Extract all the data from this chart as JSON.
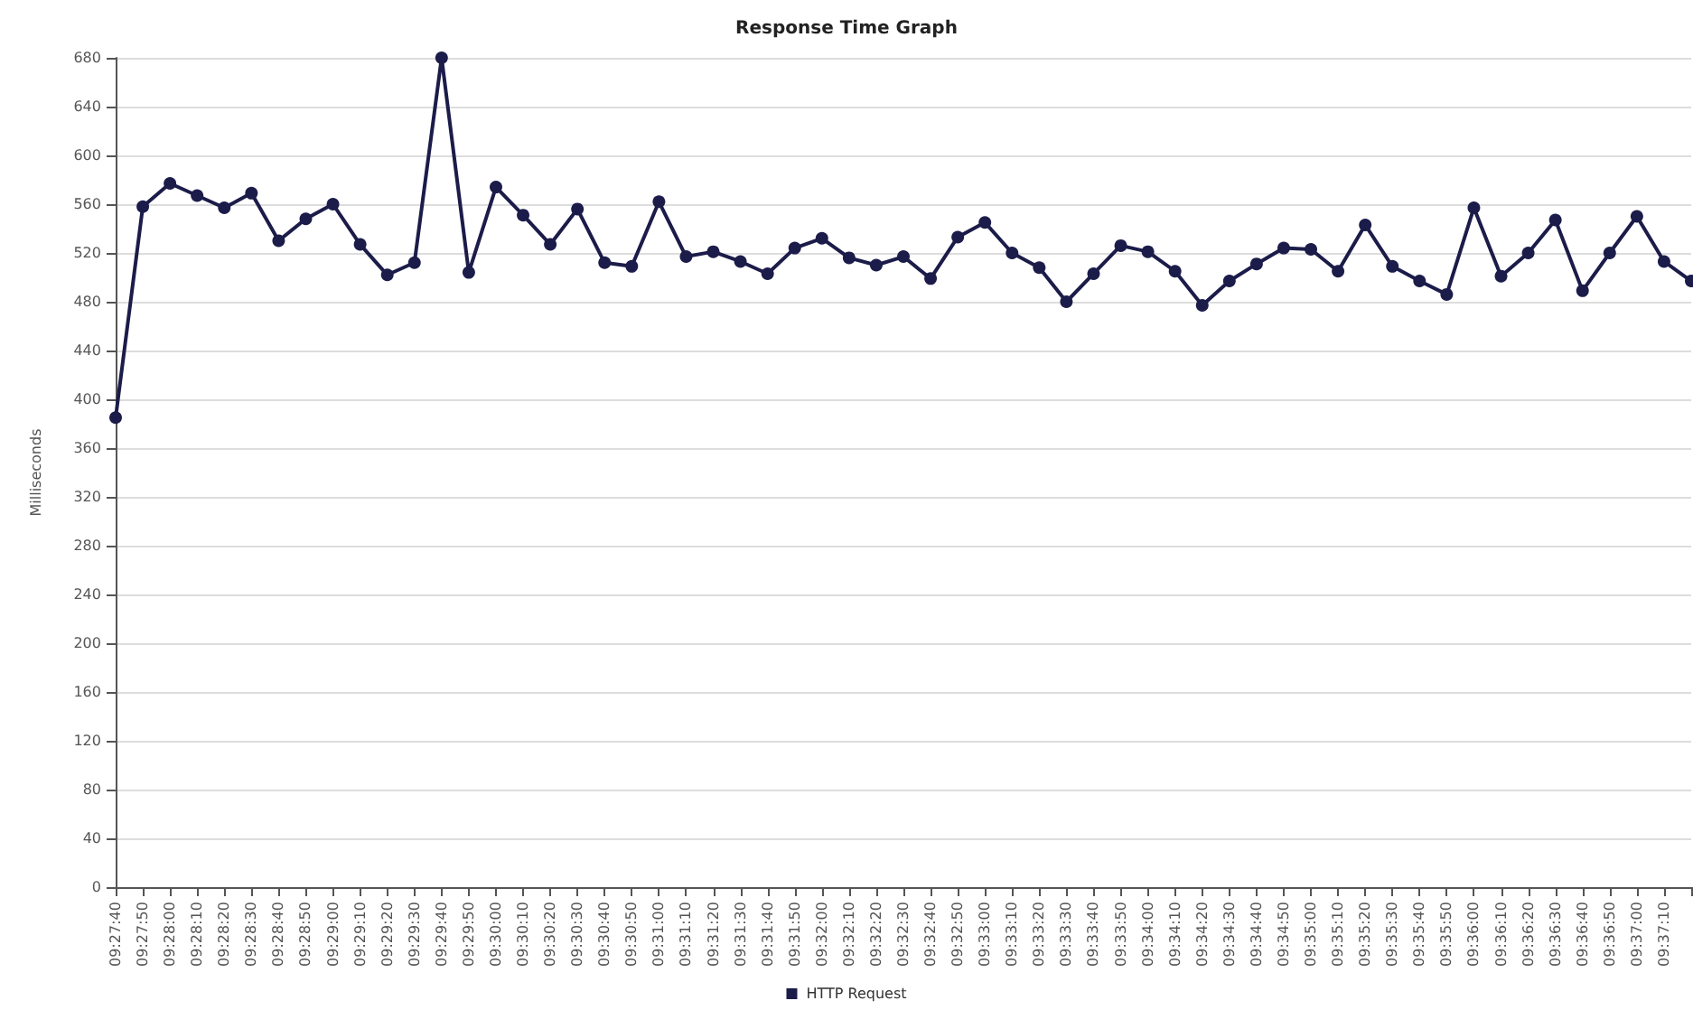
{
  "chart_data": {
    "type": "line",
    "title": "Response Time Graph",
    "ylabel": "Milliseconds",
    "categories": [
      "09:27:40",
      "09:27:50",
      "09:28:00",
      "09:28:10",
      "09:28:20",
      "09:28:30",
      "09:28:40",
      "09:28:50",
      "09:29:00",
      "09:29:10",
      "09:29:20",
      "09:29:30",
      "09:29:40",
      "09:29:50",
      "09:30:00",
      "09:30:10",
      "09:30:20",
      "09:30:30",
      "09:30:40",
      "09:30:50",
      "09:31:00",
      "09:31:10",
      "09:31:20",
      "09:31:30",
      "09:31:40",
      "09:31:50",
      "09:32:00",
      "09:32:10",
      "09:32:20",
      "09:32:30",
      "09:32:40",
      "09:32:50",
      "09:33:00",
      "09:33:10",
      "09:33:20",
      "09:33:30",
      "09:33:40",
      "09:33:50",
      "09:34:00",
      "09:34:10",
      "09:34:20",
      "09:34:30",
      "09:34:40",
      "09:34:50",
      "09:35:00",
      "09:35:10",
      "09:35:20",
      "09:35:30",
      "09:35:40",
      "09:35:50",
      "09:36:00",
      "09:36:10",
      "09:36:20",
      "09:36:30",
      "09:36:40",
      "09:36:50",
      "09:37:00",
      "09:37:10",
      null
    ],
    "series": [
      {
        "name": "HTTP Request",
        "color": "#1c1c4a",
        "values": [
          385,
          558,
          577,
          567,
          557,
          569,
          530,
          548,
          560,
          527,
          502,
          512,
          680,
          504,
          574,
          551,
          527,
          556,
          512,
          509,
          562,
          517,
          521,
          513,
          503,
          524,
          532,
          516,
          510,
          517,
          499,
          533,
          545,
          520,
          508,
          480,
          503,
          526,
          521,
          505,
          477,
          497,
          511,
          524,
          523,
          505,
          543,
          509,
          497,
          486,
          557,
          501,
          520,
          547,
          489,
          520,
          550,
          513,
          497
        ]
      }
    ],
    "ylim": [
      0,
      680
    ],
    "yticks": [
      0,
      40,
      80,
      120,
      160,
      200,
      240,
      280,
      320,
      360,
      400,
      440,
      480,
      520,
      560,
      600,
      640,
      680
    ],
    "grid": "y",
    "legend": "bottom",
    "marker": "circle",
    "line_style": "solid"
  }
}
